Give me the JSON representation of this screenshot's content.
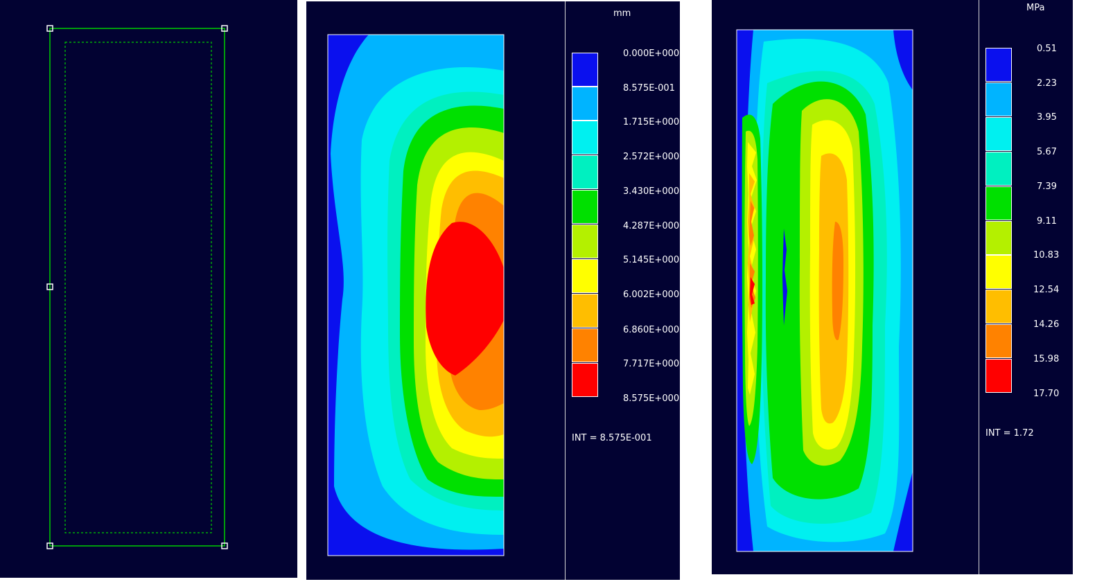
{
  "displacement": {
    "unit": "mm",
    "legend": [
      "0.000E+000",
      "8.575E-001",
      "1.715E+000",
      "2.572E+000",
      "3.430E+000",
      "4.287E+000",
      "5.145E+000",
      "6.002E+000",
      "6.860E+000",
      "7.717E+000",
      "8.575E+000"
    ],
    "int_label": "INT = 8.575E-001"
  },
  "stress": {
    "unit": "MPa",
    "legend": [
      "0.51",
      "2.23",
      "3.95",
      "5.67",
      "7.39",
      "9.11",
      "10.83",
      "12.54",
      "14.26",
      "15.98",
      "17.70"
    ],
    "int_label": "INT = 1.72"
  },
  "colors": {
    "band_colors": [
      "#0a10ee",
      "#00b4ff",
      "#00f0f0",
      "#00f0c0",
      "#00e000",
      "#b4f000",
      "#ffff00",
      "#ffbe00",
      "#ff8200",
      "#ff0000"
    ],
    "background": "#020232",
    "outline_green": "#00d000"
  }
}
